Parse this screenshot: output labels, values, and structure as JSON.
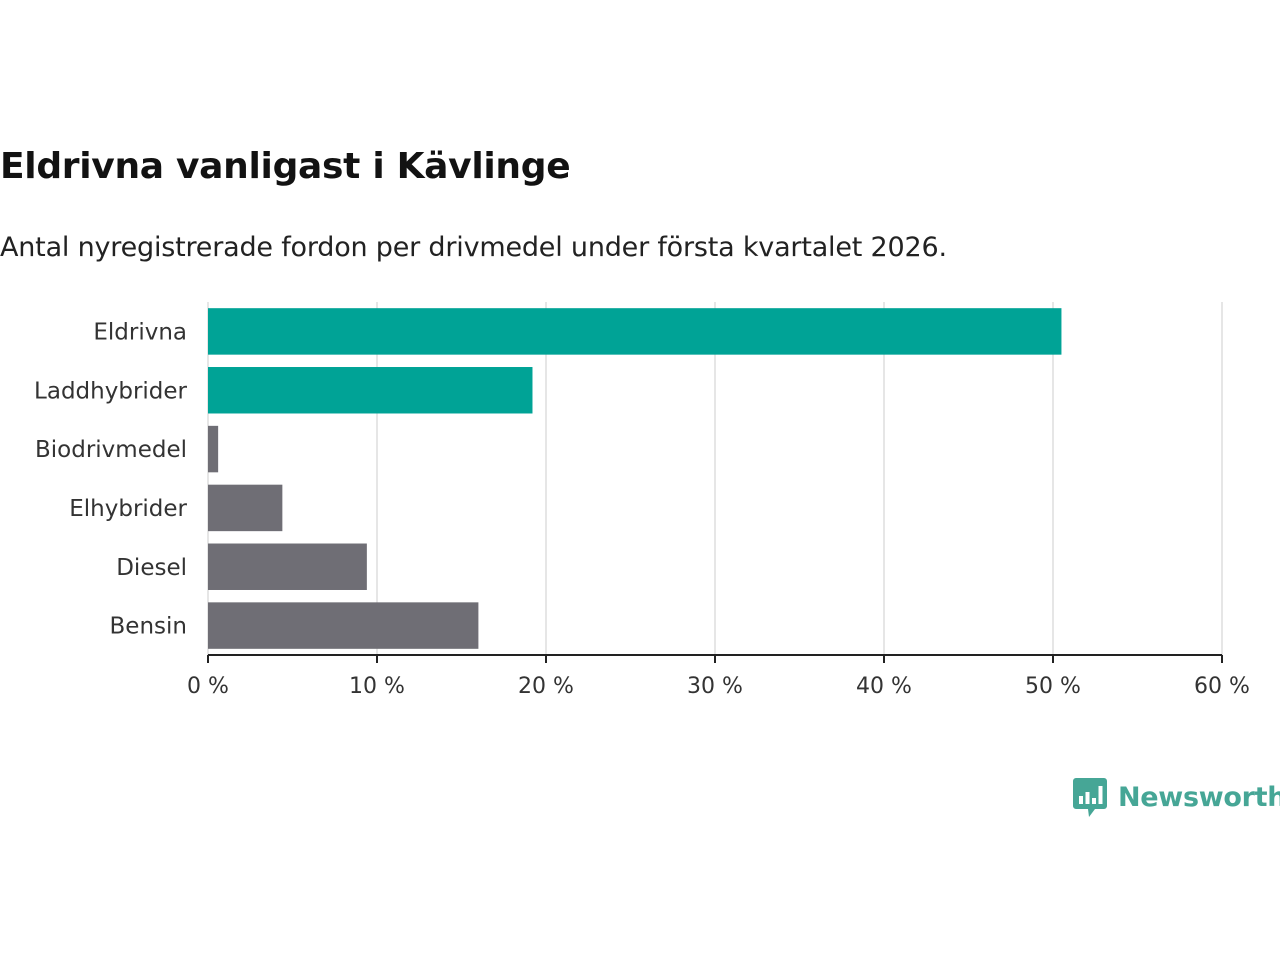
{
  "brand": {
    "name": "Newsworthy"
  },
  "colors": {
    "highlight": "#00a396",
    "muted": "#6f6e75",
    "grid": "#dddddd",
    "axis": "#222222"
  },
  "chart_data": {
    "type": "bar",
    "orientation": "horizontal",
    "title": "Eldrivna vanligast i Kävlinge",
    "subtitle": "Antal nyregistrerade fordon per drivmedel under första kvartalet 2026.",
    "categories": [
      "Eldrivna",
      "Laddhybrider",
      "Biodrivmedel",
      "Elhybrider",
      "Diesel",
      "Bensin"
    ],
    "values": [
      50.5,
      19.2,
      0.6,
      4.4,
      9.4,
      16.0
    ],
    "highlighted": [
      true,
      true,
      false,
      false,
      false,
      false
    ],
    "unit": "%",
    "xlim": [
      0,
      60
    ],
    "xticks": [
      0,
      10,
      20,
      30,
      40,
      50,
      60
    ],
    "xtick_labels": [
      "0 %",
      "10 %",
      "20 %",
      "30 %",
      "40 %",
      "50 %",
      "60 %"
    ],
    "grid": true,
    "xlabel": "",
    "ylabel": ""
  }
}
